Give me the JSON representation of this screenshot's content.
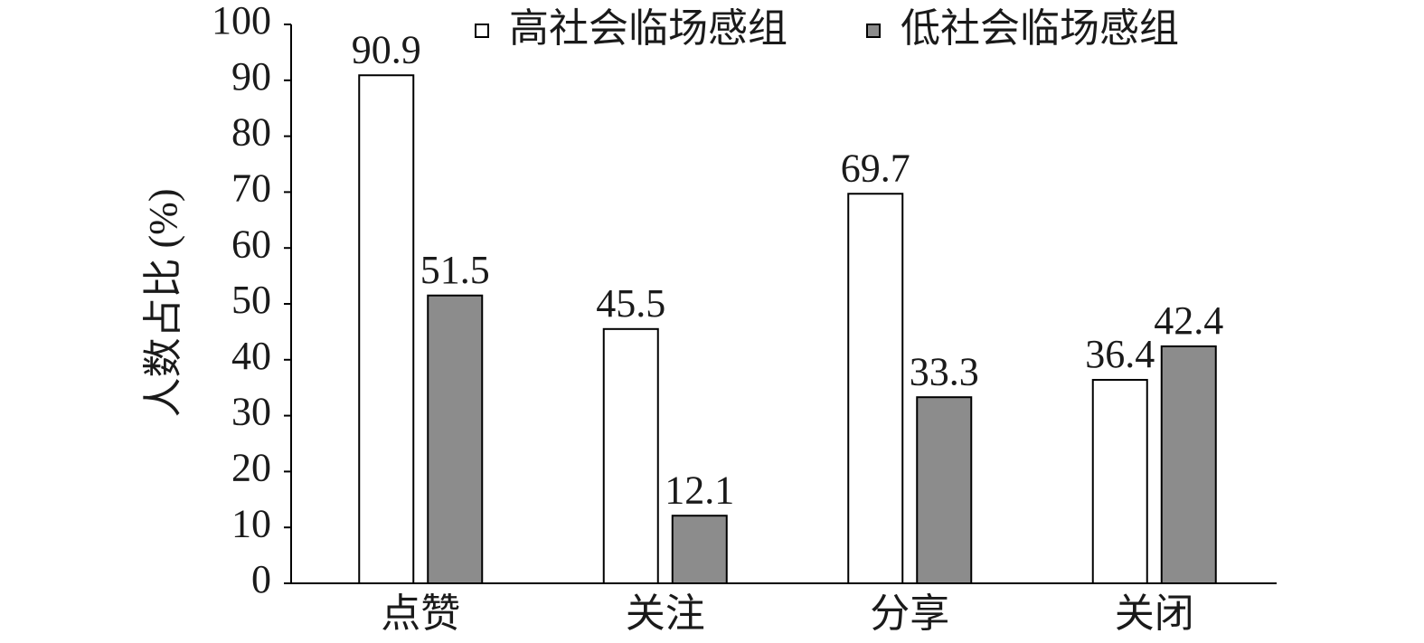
{
  "chart_data": {
    "type": "bar",
    "y_label": "人数占比 (%)",
    "categories": [
      "点赞",
      "关注",
      "分享",
      "关闭"
    ],
    "series": [
      {
        "name": "高社会临场感组",
        "color": "#ffffff",
        "values": [
          90.9,
          45.5,
          69.7,
          36.4
        ]
      },
      {
        "name": "低社会临场感组",
        "color": "#8c8c8c",
        "values": [
          51.5,
          12.1,
          33.3,
          42.4
        ]
      }
    ],
    "ylim": [
      0,
      100
    ],
    "yticks": [
      0,
      10,
      20,
      30,
      40,
      50,
      60,
      70,
      80,
      90,
      100
    ],
    "grid": false,
    "legend": "top"
  }
}
